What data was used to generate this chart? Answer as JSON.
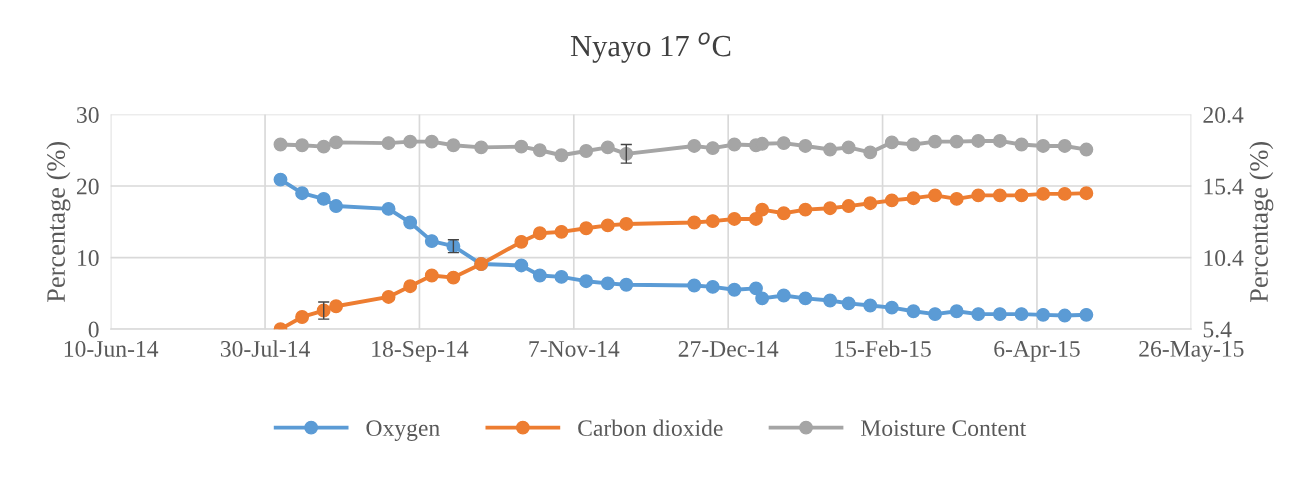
{
  "chart_data": {
    "type": "line",
    "title": "Nyayo 17 $^{o}$C",
    "ylabel": "Percentage (%)",
    "y2label": "Percentage (%)",
    "x": [
      "2014-08-04",
      "2014-08-11",
      "2014-08-18",
      "2014-08-22",
      "2014-09-08",
      "2014-09-15",
      "2014-09-22",
      "2014-09-29",
      "2014-10-08",
      "2014-10-21",
      "2014-10-27",
      "2014-11-03",
      "2014-11-11",
      "2014-11-18",
      "2014-11-24",
      "2014-12-16",
      "2014-12-22",
      "2014-12-29",
      "2015-01-05",
      "2015-01-07",
      "2015-01-14",
      "2015-01-21",
      "2015-01-29",
      "2015-02-04",
      "2015-02-11",
      "2015-02-18",
      "2015-02-25",
      "2015-03-04",
      "2015-03-11",
      "2015-03-18",
      "2015-03-25",
      "2015-04-01",
      "2015-04-08",
      "2015-04-15",
      "2015-04-22"
    ],
    "series": [
      {
        "name": "Oxygen",
        "color": "#5b9bd5",
        "values": [
          20.9,
          19.0,
          18.2,
          17.2,
          16.8,
          14.9,
          12.3,
          11.6,
          9.1,
          8.9,
          7.5,
          7.3,
          6.7,
          6.4,
          6.2,
          6.1,
          5.9,
          5.5,
          5.7,
          4.3,
          4.7,
          4.3,
          4.0,
          3.6,
          3.3,
          3.0,
          2.5,
          2.1,
          2.5,
          2.1,
          2.1,
          2.1,
          2.0,
          1.9,
          2.0
        ],
        "errors": [
          null,
          null,
          null,
          null,
          null,
          null,
          null,
          0.9,
          null,
          null,
          null,
          null,
          null,
          null,
          null,
          null,
          null,
          null,
          null,
          null,
          null,
          null,
          null,
          null,
          null,
          null,
          null,
          null,
          null,
          null,
          null,
          null,
          null,
          null,
          null
        ]
      },
      {
        "name": "Carbon dioxide",
        "color": "#ed7d31",
        "values": [
          0.0,
          1.7,
          2.6,
          3.2,
          4.5,
          6.0,
          7.5,
          7.2,
          9.1,
          12.2,
          13.4,
          13.6,
          14.1,
          14.5,
          14.7,
          14.9,
          15.1,
          15.4,
          15.4,
          16.7,
          16.2,
          16.7,
          16.9,
          17.2,
          17.6,
          18.0,
          18.3,
          18.7,
          18.2,
          18.7,
          18.7,
          18.7,
          18.9,
          18.9,
          19.0
        ],
        "errors": [
          null,
          null,
          1.2,
          null,
          null,
          null,
          null,
          null,
          null,
          null,
          null,
          null,
          null,
          null,
          null,
          null,
          null,
          null,
          null,
          null,
          null,
          null,
          null,
          null,
          null,
          null,
          null,
          null,
          null,
          null,
          null,
          null,
          null,
          null,
          null
        ]
      },
      {
        "name": "Moisture Content",
        "color": "#a5a5a5",
        "values": [
          25.8,
          25.7,
          25.5,
          26.1,
          26.0,
          26.2,
          26.2,
          25.7,
          25.4,
          25.5,
          25.0,
          24.3,
          24.9,
          25.4,
          24.5,
          25.6,
          25.3,
          25.8,
          25.7,
          25.9,
          26.0,
          25.6,
          25.1,
          25.4,
          24.7,
          26.1,
          25.8,
          26.2,
          26.2,
          26.3,
          26.3,
          25.8,
          25.6,
          25.6,
          25.1
        ],
        "errors": [
          null,
          null,
          null,
          null,
          null,
          null,
          null,
          null,
          null,
          null,
          null,
          null,
          null,
          null,
          1.3,
          null,
          null,
          null,
          null,
          null,
          null,
          null,
          null,
          null,
          null,
          null,
          null,
          null,
          null,
          null,
          null,
          null,
          null,
          null,
          null
        ]
      }
    ],
    "xlim": [
      "2014-06-10",
      "2015-05-26"
    ],
    "xticks": [
      {
        "value": "2014-06-10",
        "label": "10-Jun-14"
      },
      {
        "value": "2014-07-30",
        "label": "30-Jul-14"
      },
      {
        "value": "2014-09-18",
        "label": "18-Sep-14"
      },
      {
        "value": "2014-11-07",
        "label": "7-Nov-14"
      },
      {
        "value": "2014-12-27",
        "label": "27-Dec-14"
      },
      {
        "value": "2015-02-15",
        "label": "15-Feb-15"
      },
      {
        "value": "2015-04-06",
        "label": "6-Apr-15"
      },
      {
        "value": "2015-05-26",
        "label": "26-May-15"
      }
    ],
    "ylim": [
      0,
      30
    ],
    "yticks": [
      0,
      10,
      20,
      30
    ],
    "y2lim": [
      5.4,
      20.4
    ],
    "y2ticks": [
      5.4,
      10.4,
      15.4,
      20.4
    ],
    "grid": true,
    "legend": "bottom",
    "marker": "circle",
    "line_style": "solid"
  }
}
